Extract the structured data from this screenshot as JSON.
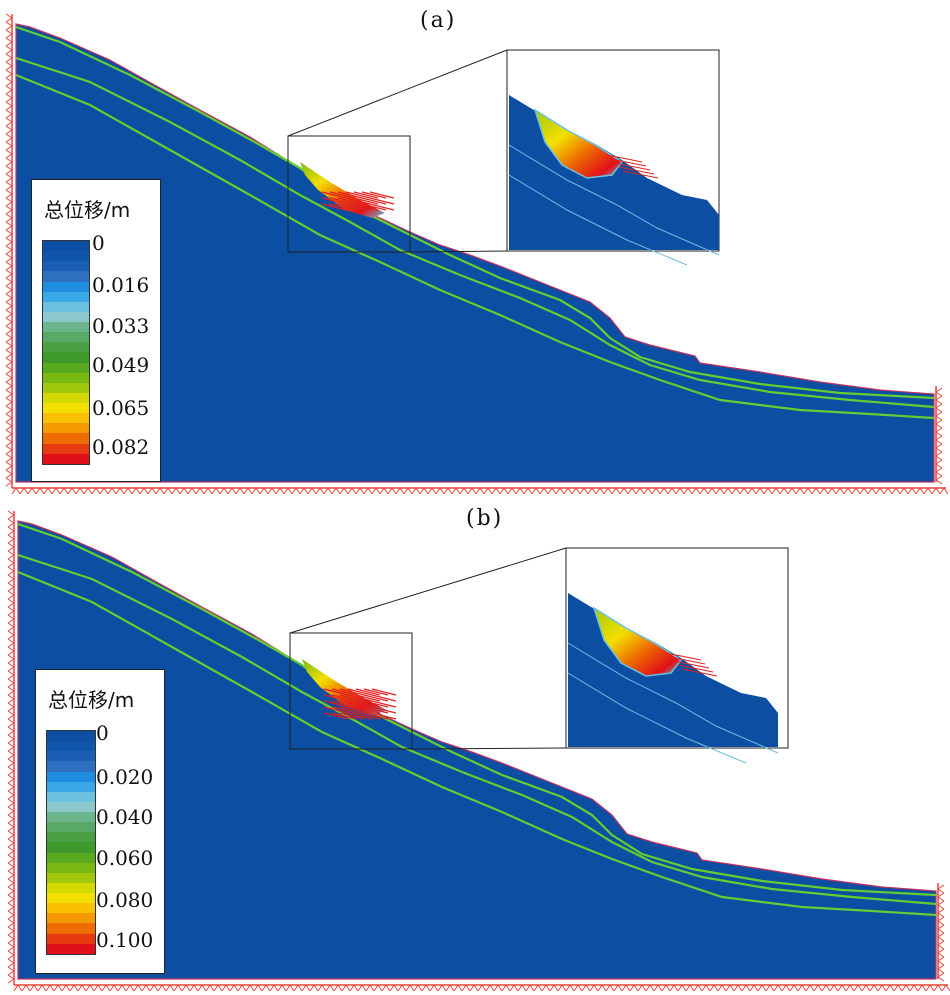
{
  "panels": [
    {
      "id": "a",
      "label": "(a)",
      "legend": {
        "title": "总位移/m",
        "ticks": [
          "0",
          "0.016",
          "0.033",
          "0.049",
          "0.065",
          "0.082"
        ]
      }
    },
    {
      "id": "b",
      "label": "(b)",
      "legend": {
        "title": "总位移/m",
        "ticks": [
          "0",
          "0.020",
          "0.040",
          "0.060",
          "0.080",
          "0.100"
        ]
      }
    }
  ],
  "colors": {
    "soil_fill": "#0b4ea2",
    "layer_line": "#66cc33",
    "boundary_support": "#e8443a",
    "displacement_vector": "#e02020",
    "colormap": [
      "#0b4ea2",
      "#0f55aa",
      "#1a5fb4",
      "#2e6fc0",
      "#1f8de0",
      "#3aa8e8",
      "#6cc0e0",
      "#8cc8cc",
      "#6cb48c",
      "#5aa866",
      "#4ca044",
      "#3f9a2c",
      "#5aaa20",
      "#7ab814",
      "#a2c80e",
      "#d2d800",
      "#f2e000",
      "#f8c000",
      "#f49a00",
      "#ee6c00",
      "#e83a10",
      "#e0101a"
    ]
  }
}
